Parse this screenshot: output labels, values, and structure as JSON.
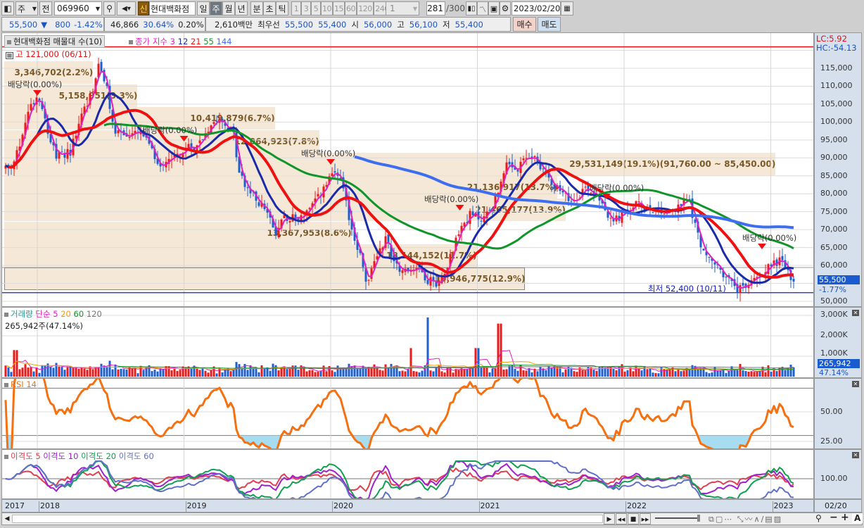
{
  "toolbar": {
    "period_select": "주",
    "prev_label": "전",
    "stock_code": "069960",
    "new_badge": "신",
    "stock_name": "현대백화점",
    "periods": [
      "일",
      "주",
      "월",
      "년"
    ],
    "selected_period": "주",
    "units": [
      "분",
      "초",
      "틱"
    ],
    "intervals": [
      "1",
      "3",
      "5",
      "10",
      "15",
      "60",
      "120",
      "240"
    ],
    "interval_select": "1",
    "count_value": "281",
    "count_total": "/300",
    "date": "2023/02/20"
  },
  "quote": {
    "price": "55,500",
    "direction": "▼",
    "change": "800",
    "change_pct": "-1.42%",
    "volume": "46,866",
    "volume_ratio": "30.64%",
    "turnover": "0.20%",
    "amount": "2,610백만",
    "best_label": "최우선",
    "best_ask": "55,500",
    "best_bid": "55,400",
    "open_label": "시",
    "open": "56,000",
    "high_label": "고",
    "high": "56,100",
    "low_label": "저",
    "low": "55,400",
    "buy_label": "매수",
    "sell_label": "매도"
  },
  "price_panel": {
    "profile_title": "현대백화점 매물대 수(10)",
    "ma_title": "종가 지수",
    "ma_periods": [
      "3",
      "12",
      "21",
      "55",
      "144"
    ],
    "ma_colors": [
      "#e020c0",
      "#1a2aa8",
      "#ee1111",
      "#10952a",
      "#3d6ef0"
    ],
    "lc": "LC:5.92",
    "hc": "HC:-54.13",
    "high_marker": "고 121,000 (06/11)",
    "low_marker": "최저 52,400 (10/11)",
    "current_price": "55,500",
    "current_pct": "-1.77%",
    "y_ticks": [
      "115,000",
      "110,000",
      "105,000",
      "100,000",
      "95,000",
      "90,000",
      "85,000",
      "80,000",
      "75,000",
      "70,000",
      "65,000",
      "60,000",
      "50,000"
    ],
    "volume_profile": [
      {
        "label": "3,346,702(2.2%)",
        "pct": 2.2
      },
      {
        "label": "5,158,951(3.3%)",
        "pct": 3.3
      },
      {
        "label": "10,419,879(6.7%)",
        "pct": 6.7
      },
      {
        "label": "12,064,923(7.8%)",
        "pct": 7.8
      },
      {
        "label": "29,531,149(19.1%)(91,760.00 ~ 85,450.00)",
        "pct": 19.1
      },
      {
        "label": "21,136,917(13.7%)",
        "pct": 13.7
      },
      {
        "label": "21,465,177(13.9%)",
        "pct": 13.9
      },
      {
        "label": "13,367,953(8.6%)",
        "pct": 8.6
      },
      {
        "label": "18,144,152(11.7%)",
        "pct": 11.7
      },
      {
        "label": "19,946,775(12.9%)",
        "pct": 12.9
      }
    ],
    "dividend_label": "배당락(0.00%)",
    "dividend_dates": [
      2018.0,
      2019.0,
      2020.0,
      2020.88,
      2021.88,
      2022.94
    ]
  },
  "volume_panel": {
    "title": "거래량",
    "ma_title": "단순",
    "ma_periods": [
      "5",
      "20",
      "60",
      "120"
    ],
    "current": "265,942주(47.14%)",
    "y_ticks": [
      "3,000K",
      "2,000K",
      "1,000K"
    ],
    "current_value": "265,942",
    "current_pct": "47.14%"
  },
  "rsi_panel": {
    "title": "RSI 14",
    "y_ticks": [
      "50.00",
      "25.00"
    ]
  },
  "disparity_panel": {
    "titles": [
      "이격도 5",
      "이격도 10",
      "이격도 20",
      "이격도 60"
    ],
    "colors": [
      "#e04050",
      "#a020d0",
      "#10a050",
      "#6070c8"
    ],
    "y_ticks": [
      "100.00"
    ]
  },
  "x_axis": {
    "labels": [
      "2017",
      "2018",
      "2019",
      "2020",
      "2021",
      "2022",
      "2023"
    ],
    "last_date": "02/20"
  },
  "chart_data": {
    "type": "candlestick",
    "interval": "weekly",
    "ylim": [
      48000,
      122000
    ],
    "close_keypoints": [
      [
        2017.77,
        88000
      ],
      [
        2017.82,
        86000
      ],
      [
        2017.89,
        95000
      ],
      [
        2017.94,
        104000
      ],
      [
        2018.01,
        108000
      ],
      [
        2018.09,
        95000
      ],
      [
        2018.13,
        90000
      ],
      [
        2018.23,
        92000
      ],
      [
        2018.3,
        102000
      ],
      [
        2018.37,
        108000
      ],
      [
        2018.42,
        116000
      ],
      [
        2018.47,
        110000
      ],
      [
        2018.52,
        98000
      ],
      [
        2018.62,
        96000
      ],
      [
        2018.71,
        97000
      ],
      [
        2018.78,
        92000
      ],
      [
        2018.83,
        88000
      ],
      [
        2018.9,
        90000
      ],
      [
        2019.0,
        92000
      ],
      [
        2019.1,
        94000
      ],
      [
        2019.19,
        100000
      ],
      [
        2019.24,
        102000
      ],
      [
        2019.34,
        96000
      ],
      [
        2019.38,
        85000
      ],
      [
        2019.46,
        80000
      ],
      [
        2019.55,
        76000
      ],
      [
        2019.63,
        68000
      ],
      [
        2019.67,
        74000
      ],
      [
        2019.77,
        73000
      ],
      [
        2019.87,
        76000
      ],
      [
        2019.96,
        82000
      ],
      [
        2020.03,
        86000
      ],
      [
        2020.08,
        82000
      ],
      [
        2020.13,
        72000
      ],
      [
        2020.2,
        63000
      ],
      [
        2020.25,
        54000
      ],
      [
        2020.3,
        62000
      ],
      [
        2020.38,
        68000
      ],
      [
        2020.42,
        62000
      ],
      [
        2020.5,
        58000
      ],
      [
        2020.59,
        60000
      ],
      [
        2020.66,
        56000
      ],
      [
        2020.74,
        55000
      ],
      [
        2020.81,
        62000
      ],
      [
        2020.88,
        70000
      ],
      [
        2020.95,
        74000
      ],
      [
        2021.04,
        73000
      ],
      [
        2021.12,
        78000
      ],
      [
        2021.19,
        88000
      ],
      [
        2021.26,
        86000
      ],
      [
        2021.36,
        91000
      ],
      [
        2021.43,
        88000
      ],
      [
        2021.5,
        84000
      ],
      [
        2021.57,
        80000
      ],
      [
        2021.65,
        78000
      ],
      [
        2021.74,
        82000
      ],
      [
        2021.84,
        79000
      ],
      [
        2021.91,
        72000
      ],
      [
        2021.99,
        74000
      ],
      [
        2022.08,
        77000
      ],
      [
        2022.18,
        76000
      ],
      [
        2022.27,
        75000
      ],
      [
        2022.37,
        76000
      ],
      [
        2022.44,
        79000
      ],
      [
        2022.49,
        70000
      ],
      [
        2022.56,
        62000
      ],
      [
        2022.63,
        60000
      ],
      [
        2022.71,
        56000
      ],
      [
        2022.78,
        53000
      ],
      [
        2022.86,
        55000
      ],
      [
        2022.93,
        58000
      ],
      [
        2023.0,
        60000
      ],
      [
        2023.07,
        62000
      ],
      [
        2023.12,
        58000
      ],
      [
        2023.14,
        55500
      ]
    ],
    "volume_spikes": [
      [
        2017.85,
        1300000
      ],
      [
        2020.66,
        2900000
      ],
      [
        2021.15,
        2600000
      ],
      [
        2020.55,
        1400000
      ],
      [
        2021.0,
        1400000
      ]
    ]
  },
  "bottom_bar": {
    "tools": [
      "play",
      "rewind",
      "stop",
      "fast-forward"
    ]
  }
}
